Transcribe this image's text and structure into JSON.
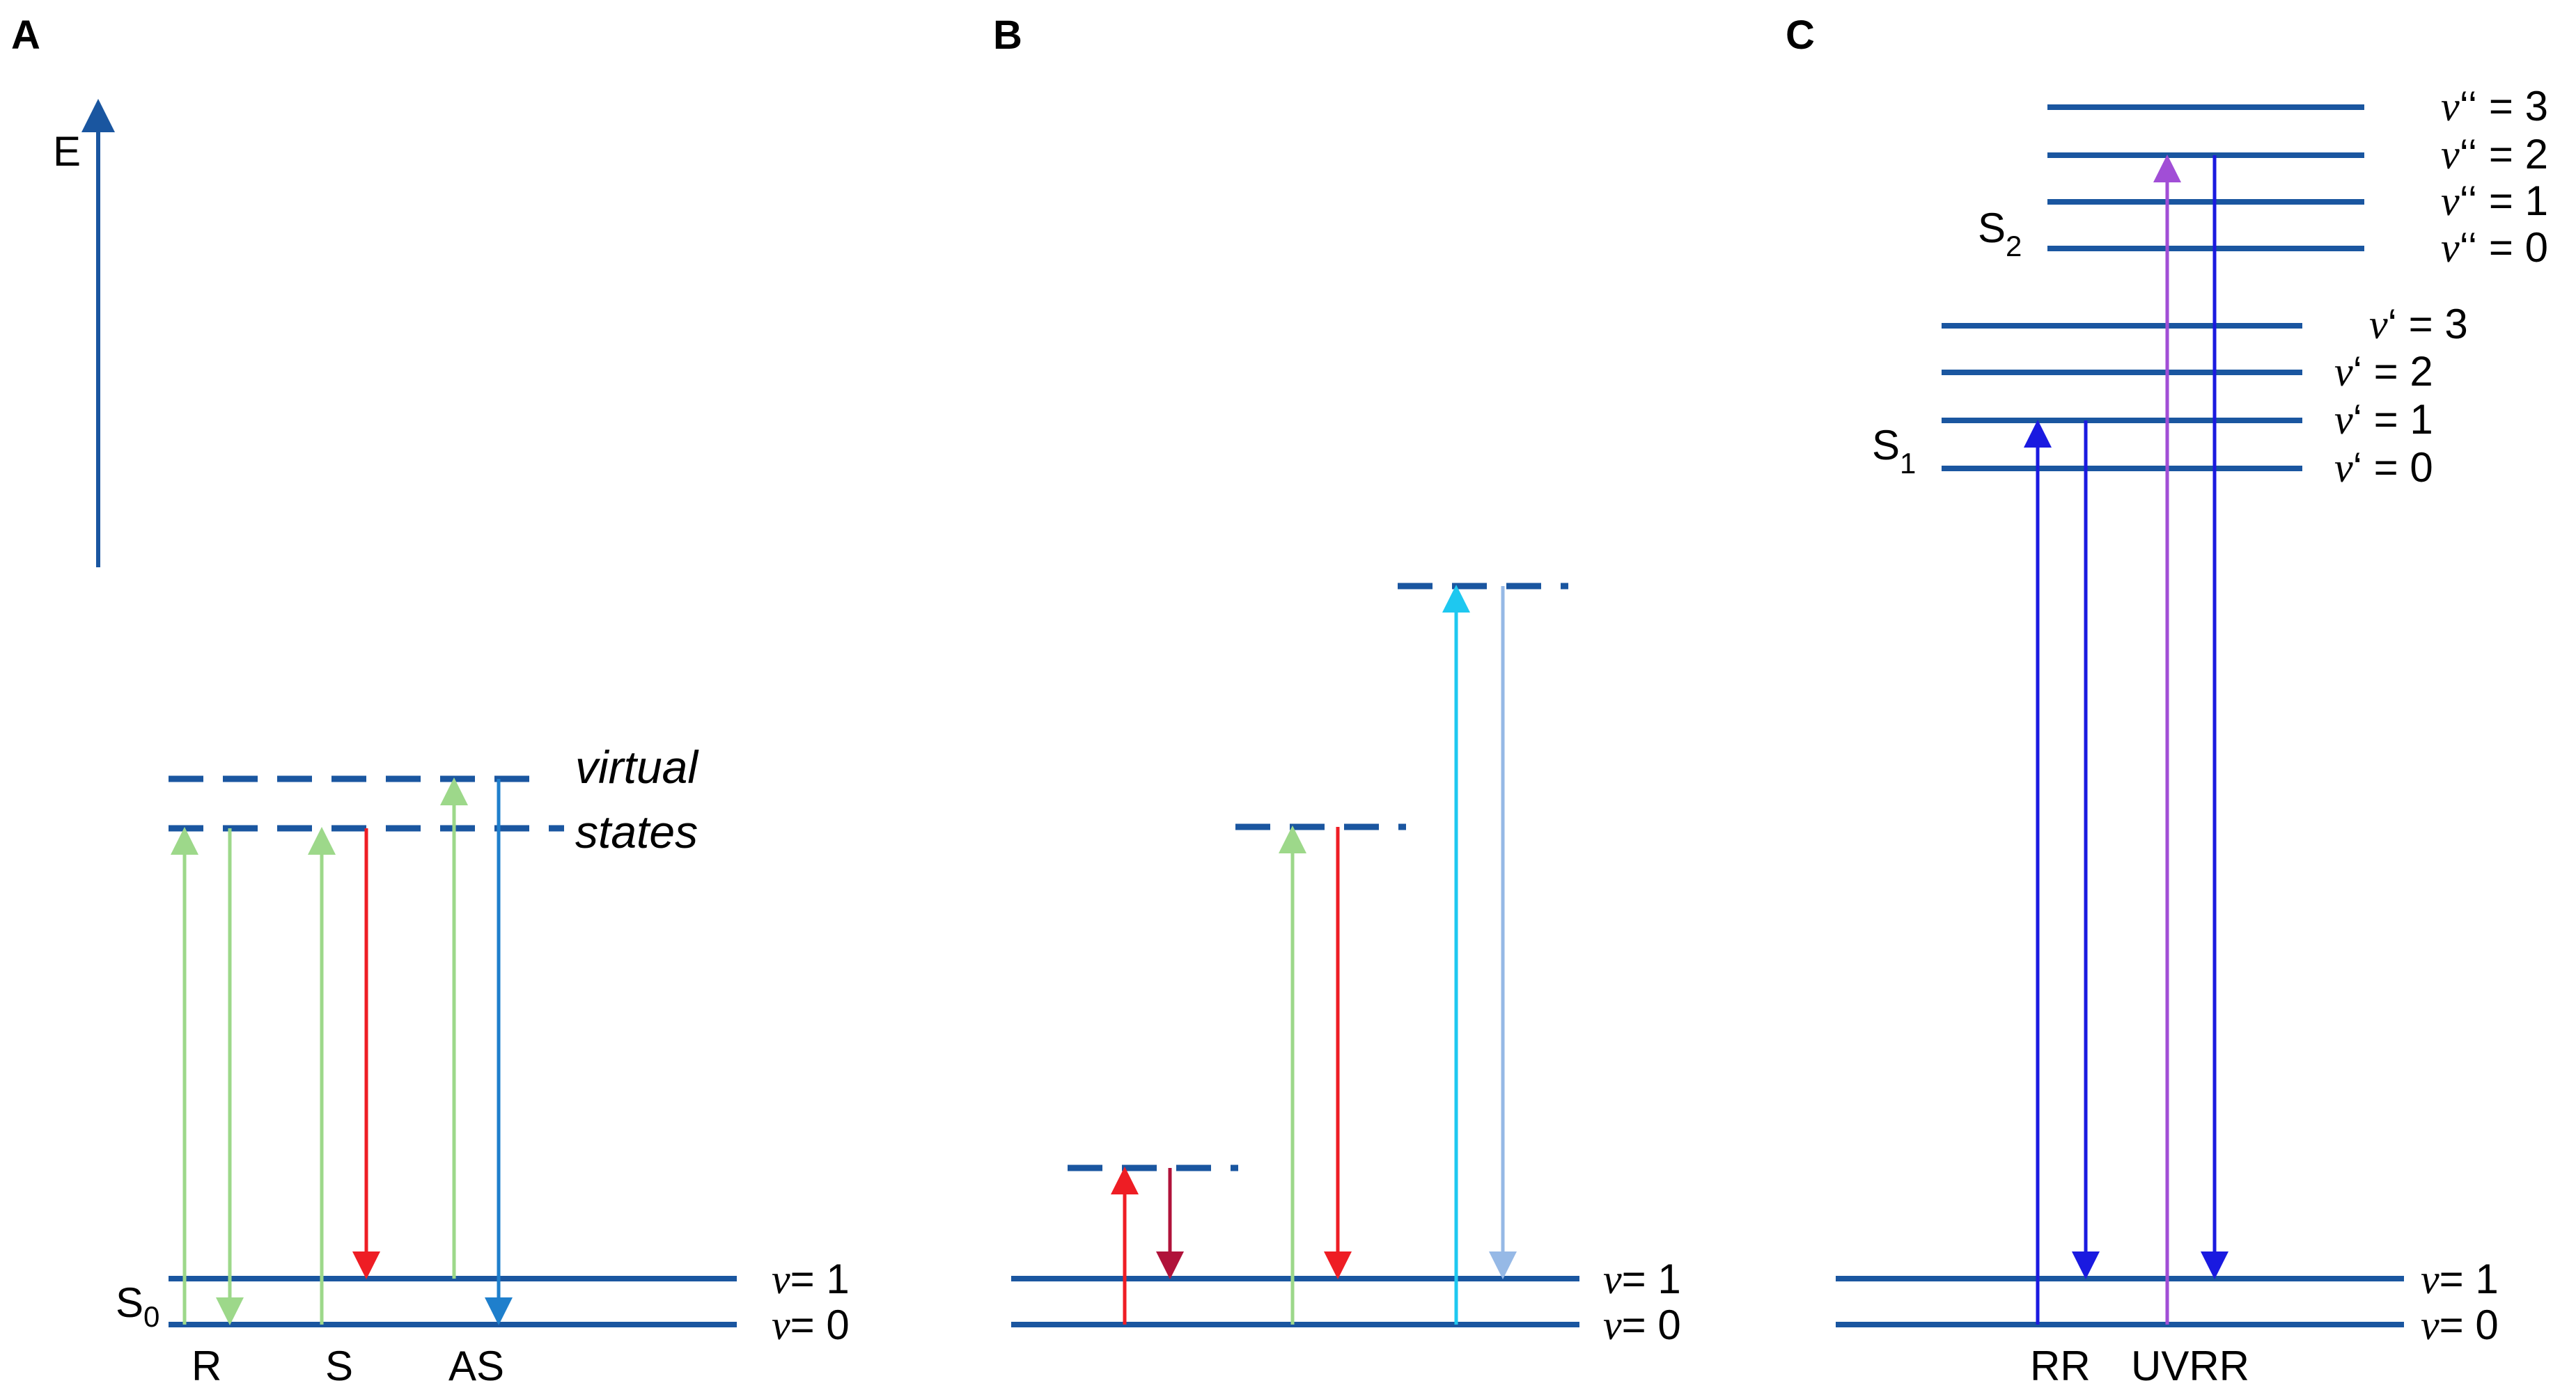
{
  "panels": {
    "a": {
      "label": "A"
    },
    "b": {
      "label": "B"
    },
    "c": {
      "label": "C"
    }
  },
  "energy_axis": {
    "label": "E"
  },
  "panel_a": {
    "ground_state_main": "S",
    "ground_state_sub": "0",
    "virtual_line1": "virtual",
    "virtual_line2": "states",
    "mode_labels": [
      "R",
      "S",
      "AS"
    ]
  },
  "vib_levels": {
    "nu_symbol": "ν",
    "v1": "= 1",
    "v0": "= 0"
  },
  "panel_c": {
    "s1_main": "S",
    "s1_sub": "1",
    "s2_main": "S",
    "s2_sub": "2",
    "s1_levels": [
      "‘ = 3",
      "‘ = 2",
      "‘ = 1",
      "‘ = 0"
    ],
    "s2_levels": [
      "‘‘ = 3",
      "‘‘ = 2",
      "‘‘ = 1",
      "‘‘ = 0"
    ],
    "mode_labels": [
      "RR",
      "UVRR"
    ]
  },
  "colors": {
    "level": "#1a56a0",
    "green": "#9dd88a",
    "red": "#ee1d24",
    "dark_red": "#b0123a",
    "blue_as": "#1f7fcc",
    "cyan": "#1ec8f0",
    "light_blue": "#96b9e6",
    "deep_blue": "#1a1ae0",
    "violet": "#a14ed6"
  }
}
